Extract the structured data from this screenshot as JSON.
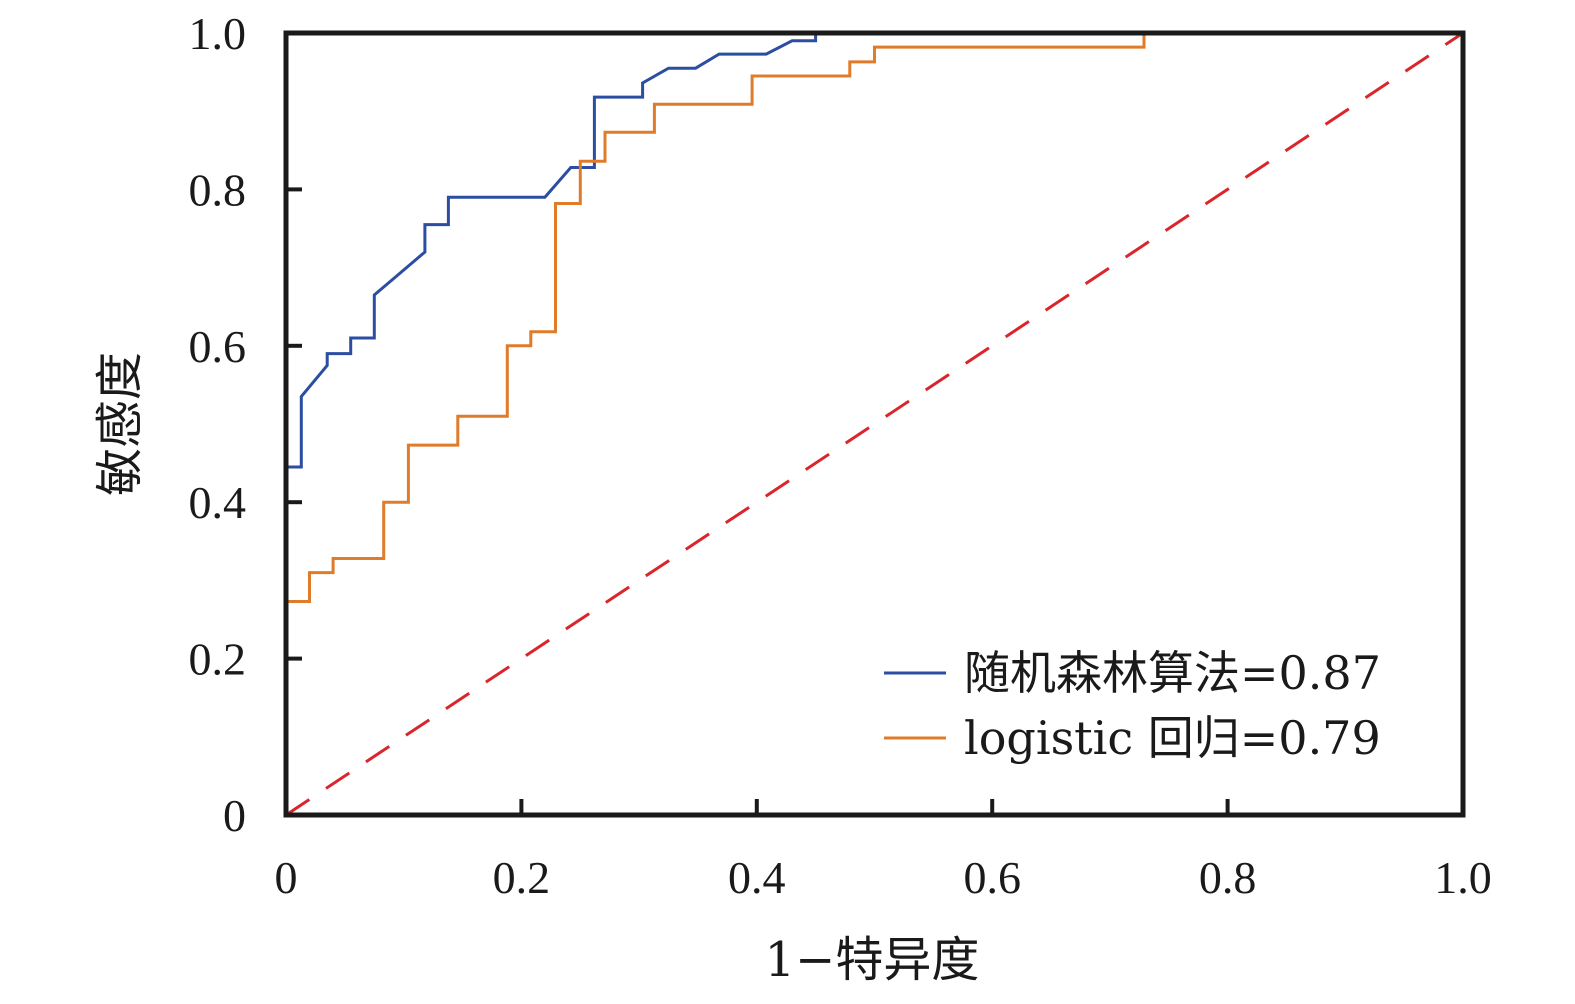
{
  "chart_data": {
    "type": "line",
    "xlabel": "1−特异度",
    "ylabel": "敏感度",
    "xlim": [
      0,
      1
    ],
    "ylim": [
      0,
      1
    ],
    "xticks": [
      "0",
      "0.2",
      "0.4",
      "0.6",
      "0.8",
      "1.0"
    ],
    "yticks": [
      "0",
      "0.2",
      "0.4",
      "0.6",
      "0.8",
      "1.0"
    ],
    "grid": false,
    "legend_position": "bottom-right",
    "series": [
      {
        "name": "随机森林算法=0.87",
        "color": "#2b4ea2",
        "x": [
          0.0,
          0.0,
          0.013,
          0.013,
          0.035,
          0.035,
          0.055,
          0.055,
          0.075,
          0.075,
          0.118,
          0.118,
          0.138,
          0.138,
          0.22,
          0.242,
          0.262,
          0.262,
          0.303,
          0.303,
          0.325,
          0.348,
          0.368,
          0.408,
          0.43,
          0.45,
          0.45
        ],
        "y": [
          0.0,
          0.445,
          0.445,
          0.535,
          0.575,
          0.59,
          0.59,
          0.61,
          0.61,
          0.665,
          0.72,
          0.755,
          0.755,
          0.79,
          0.79,
          0.828,
          0.828,
          0.918,
          0.918,
          0.936,
          0.955,
          0.955,
          0.973,
          0.973,
          0.99,
          0.99,
          1.0
        ]
      },
      {
        "name": "logistic 回归=0.79",
        "color": "#e07b2a",
        "x": [
          0.0,
          0.0,
          0.02,
          0.02,
          0.04,
          0.04,
          0.083,
          0.083,
          0.104,
          0.104,
          0.146,
          0.146,
          0.188,
          0.188,
          0.208,
          0.208,
          0.229,
          0.229,
          0.25,
          0.25,
          0.271,
          0.271,
          0.313,
          0.313,
          0.396,
          0.396,
          0.479,
          0.479,
          0.5,
          0.5,
          0.729,
          0.729,
          1.0
        ],
        "y": [
          0.0,
          0.273,
          0.273,
          0.31,
          0.31,
          0.328,
          0.328,
          0.4,
          0.4,
          0.473,
          0.473,
          0.51,
          0.51,
          0.6,
          0.6,
          0.618,
          0.618,
          0.782,
          0.782,
          0.836,
          0.836,
          0.873,
          0.873,
          0.909,
          0.909,
          0.945,
          0.945,
          0.963,
          0.963,
          0.982,
          0.982,
          1.0,
          1.0
        ]
      },
      {
        "color": "#d9262c",
        "dashed": true,
        "x": [
          0,
          1
        ],
        "y": [
          0,
          1
        ]
      }
    ]
  }
}
